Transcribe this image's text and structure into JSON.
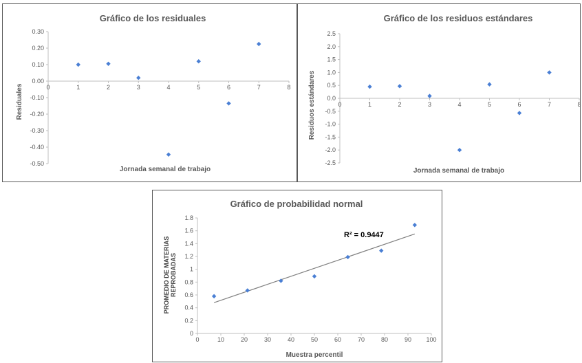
{
  "colors": {
    "marker": "#4a7fd4",
    "axis": "#bfbfbf",
    "trend": "#808080"
  },
  "chart_data": [
    {
      "type": "scatter",
      "title": "Gráfico de los residuales",
      "xlabel": "Jornada semanal de trabajo",
      "ylabel": "Residuales",
      "xlim": [
        0,
        8
      ],
      "ylim": [
        -0.5,
        0.3
      ],
      "xticks": [
        "0",
        "1",
        "2",
        "3",
        "4",
        "5",
        "6",
        "7",
        "8"
      ],
      "yticks": [
        "0.30",
        "0.20",
        "0.10",
        "0.00",
        "-0.10",
        "-0.20",
        "-0.30",
        "-0.40",
        "-0.50"
      ],
      "x": [
        1,
        2,
        3,
        4,
        5,
        6,
        7
      ],
      "y": [
        0.1,
        0.105,
        0.02,
        -0.445,
        0.12,
        -0.135,
        0.225
      ]
    },
    {
      "type": "scatter",
      "title": "Gráfico de los residuos estándares",
      "xlabel": "Jornada semanal de trabajo",
      "ylabel": "Residuos estándares",
      "xlim": [
        0,
        8
      ],
      "ylim": [
        -2.5,
        2.5
      ],
      "xticks": [
        "0",
        "1",
        "2",
        "3",
        "4",
        "5",
        "6",
        "7",
        "8"
      ],
      "yticks": [
        "2.5",
        "2.0",
        "1.5",
        "1.0",
        "0.5",
        "0.0",
        "-0.5",
        "-1.0",
        "-1.5",
        "-2.0",
        "-2.5"
      ],
      "x": [
        1,
        2,
        3,
        4,
        5,
        6,
        7
      ],
      "y": [
        0.45,
        0.47,
        0.09,
        -2.0,
        0.54,
        -0.57,
        1.0
      ]
    },
    {
      "type": "scatter",
      "title": "Gráfico de probabilidad normal",
      "xlabel": "Muestra percentil",
      "ylabel": "PROMEDIO DE MATERIAS REPROBADAS",
      "ylabel_lines": [
        "PROMEDIO DE MATERIAS",
        "REPROBADAS"
      ],
      "xlim": [
        0,
        100
      ],
      "ylim": [
        0,
        1.8
      ],
      "xticks": [
        "0",
        "10",
        "20",
        "30",
        "40",
        "50",
        "60",
        "70",
        "80",
        "90",
        "100"
      ],
      "yticks": [
        "1.8",
        "1.6",
        "1.4",
        "1.2",
        "1",
        "0.8",
        "0.6",
        "0.4",
        "0.2",
        "0"
      ],
      "x": [
        7.1,
        21.4,
        35.7,
        50.0,
        64.3,
        78.6,
        92.9
      ],
      "y": [
        0.58,
        0.67,
        0.82,
        0.89,
        1.19,
        1.29,
        1.69
      ],
      "trendline": {
        "x": [
          7.1,
          92.9
        ],
        "y": [
          0.48,
          1.55
        ]
      },
      "annotation": "R² = 0.9447"
    }
  ]
}
